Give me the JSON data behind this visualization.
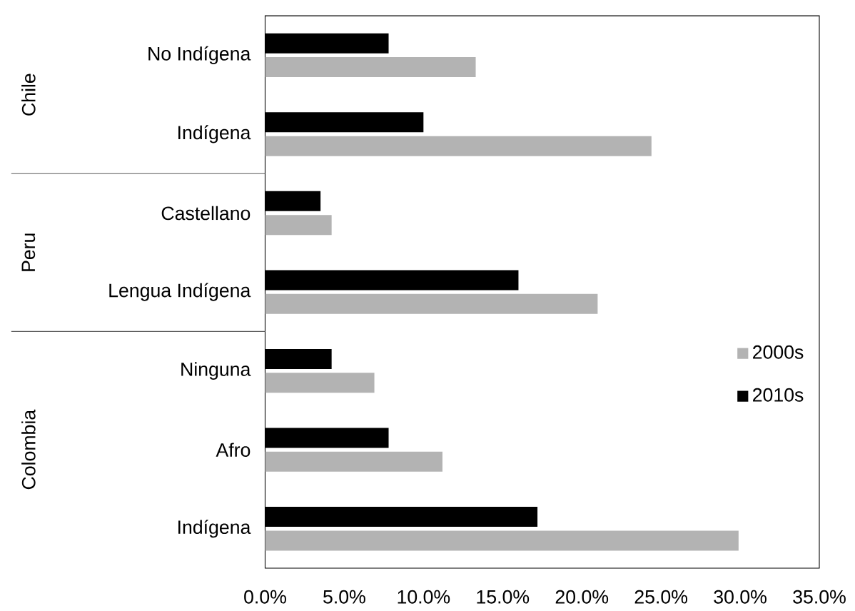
{
  "chart_data": {
    "type": "bar",
    "orientation": "horizontal",
    "categories": [
      "No Indígena",
      "Indígena",
      "Castellano",
      "Lengua Indígena",
      "Ninguna",
      "Afro",
      "Indígena"
    ],
    "series": [
      {
        "name": "2000s",
        "color": "#b3b3b3",
        "values": [
          13.3,
          24.4,
          4.2,
          21.0,
          6.9,
          11.2,
          29.9
        ]
      },
      {
        "name": "2010s",
        "color": "#000000",
        "values": [
          7.8,
          10.0,
          3.5,
          16.0,
          4.2,
          7.8,
          17.2
        ]
      }
    ],
    "xlim": [
      0,
      35
    ],
    "xticks": [
      {
        "value": 0,
        "label": "0.0%"
      },
      {
        "value": 5,
        "label": "5.0%"
      },
      {
        "value": 10,
        "label": "10.0%"
      },
      {
        "value": 15,
        "label": "15.0%"
      },
      {
        "value": 20,
        "label": "20.0%"
      },
      {
        "value": 25,
        "label": "25.0%"
      },
      {
        "value": 30,
        "label": "30.0%"
      },
      {
        "value": 35,
        "label": "35.0%"
      }
    ],
    "annotations": [
      "Chile",
      "Peru",
      "Colombia"
    ],
    "grid": false,
    "legend": "right"
  }
}
